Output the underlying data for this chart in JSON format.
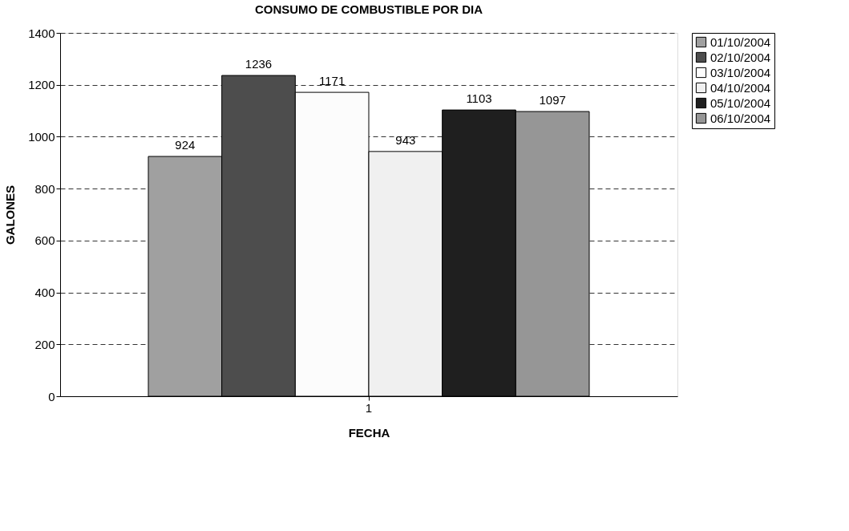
{
  "chart_data": {
    "type": "bar",
    "title": "CONSUMO DE COMBUSTIBLE POR DIA",
    "xlabel": "FECHA",
    "ylabel": "GALONES",
    "categories": [
      "1"
    ],
    "series": [
      {
        "name": "01/10/2004",
        "color": "#a0a0a0",
        "values": [
          924
        ]
      },
      {
        "name": "02/10/2004",
        "color": "#4d4d4d",
        "values": [
          1236
        ]
      },
      {
        "name": "03/10/2004",
        "color": "#fcfcfc",
        "values": [
          1171
        ]
      },
      {
        "name": "04/10/2004",
        "color": "#f0f0f0",
        "values": [
          943
        ]
      },
      {
        "name": "05/10/2004",
        "color": "#1f1f1f",
        "values": [
          1103
        ]
      },
      {
        "name": "06/10/2004",
        "color": "#969696",
        "values": [
          1097
        ]
      }
    ],
    "ylim": [
      0,
      1400
    ],
    "yticks": [
      0,
      200,
      400,
      600,
      800,
      1000,
      1200,
      1400
    ],
    "grid": "y",
    "legend": "right",
    "data_labels": true
  }
}
